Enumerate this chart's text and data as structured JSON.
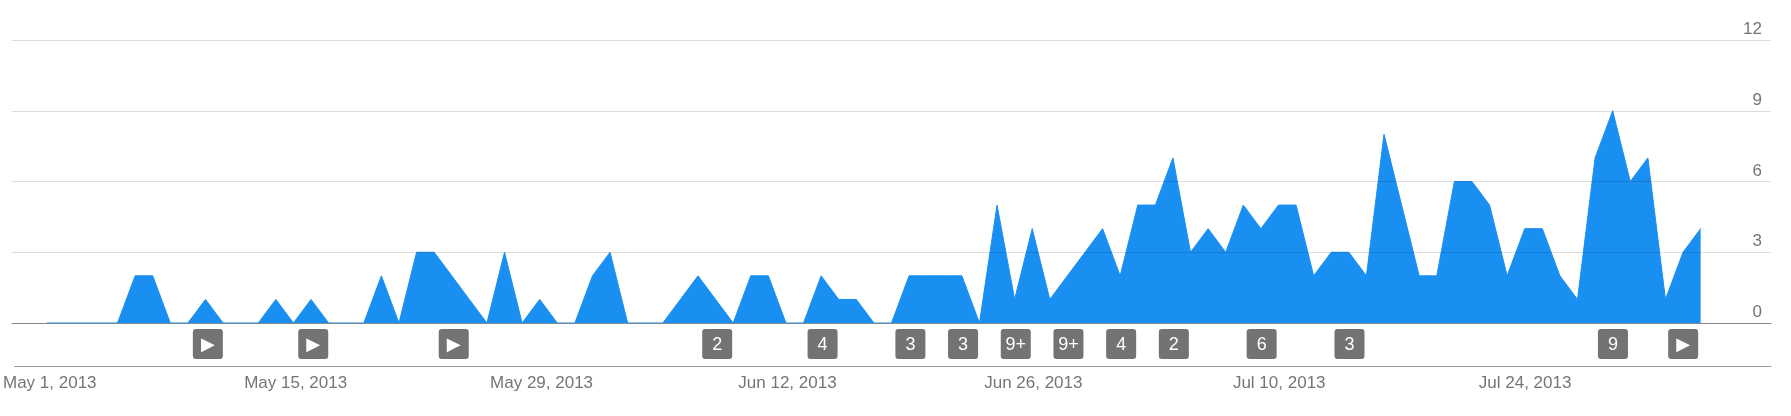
{
  "chart_data": {
    "type": "area",
    "color": "#1a8ff2",
    "x": [
      "2013-05-01",
      "2013-05-02",
      "2013-05-03",
      "2013-05-04",
      "2013-05-05",
      "2013-05-06",
      "2013-05-07",
      "2013-05-08",
      "2013-05-09",
      "2013-05-10",
      "2013-05-11",
      "2013-05-12",
      "2013-05-13",
      "2013-05-14",
      "2013-05-15",
      "2013-05-16",
      "2013-05-17",
      "2013-05-18",
      "2013-05-19",
      "2013-05-20",
      "2013-05-21",
      "2013-05-22",
      "2013-05-23",
      "2013-05-24",
      "2013-05-25",
      "2013-05-26",
      "2013-05-27",
      "2013-05-28",
      "2013-05-29",
      "2013-05-30",
      "2013-05-31",
      "2013-06-01",
      "2013-06-02",
      "2013-06-03",
      "2013-06-04",
      "2013-06-05",
      "2013-06-06",
      "2013-06-07",
      "2013-06-08",
      "2013-06-09",
      "2013-06-10",
      "2013-06-11",
      "2013-06-12",
      "2013-06-13",
      "2013-06-14",
      "2013-06-15",
      "2013-06-16",
      "2013-06-17",
      "2013-06-18",
      "2013-06-19",
      "2013-06-20",
      "2013-06-21",
      "2013-06-22",
      "2013-06-23",
      "2013-06-24",
      "2013-06-25",
      "2013-06-26",
      "2013-06-27",
      "2013-06-28",
      "2013-06-29",
      "2013-06-30",
      "2013-07-01",
      "2013-07-02",
      "2013-07-03",
      "2013-07-04",
      "2013-07-05",
      "2013-07-06",
      "2013-07-07",
      "2013-07-08",
      "2013-07-09",
      "2013-07-10",
      "2013-07-11",
      "2013-07-12",
      "2013-07-13",
      "2013-07-14",
      "2013-07-15",
      "2013-07-16",
      "2013-07-17",
      "2013-07-18",
      "2013-07-19",
      "2013-07-20",
      "2013-07-21",
      "2013-07-22",
      "2013-07-23",
      "2013-07-24",
      "2013-07-25",
      "2013-07-26",
      "2013-07-27",
      "2013-07-28",
      "2013-07-29",
      "2013-07-30",
      "2013-07-31",
      "2013-08-01",
      "2013-08-02",
      "2013-08-03"
    ],
    "values": [
      0,
      0,
      0,
      0,
      0,
      2,
      2,
      0,
      0,
      1,
      0,
      0,
      0,
      1,
      0,
      1,
      0,
      0,
      0,
      2,
      0,
      3,
      3,
      2,
      1,
      0,
      3,
      0,
      1,
      0,
      0,
      2,
      3,
      0,
      0,
      0,
      1,
      2,
      1,
      0,
      2,
      2,
      0,
      0,
      2,
      1,
      1,
      0,
      0,
      2,
      2,
      2,
      2,
      0,
      5,
      1,
      4,
      1,
      2,
      3,
      4,
      2,
      5,
      5,
      7,
      3,
      4,
      3,
      5,
      4,
      5,
      5,
      2,
      3,
      3,
      2,
      8,
      5,
      2,
      2,
      6,
      6,
      5,
      2,
      4,
      4,
      2,
      1,
      7,
      9,
      6,
      7,
      1,
      3,
      4
    ],
    "xlim": [
      "2013-04-29",
      "2013-08-07"
    ],
    "xticks": [
      {
        "value": "2013-05-01",
        "label": "May 1, 2013"
      },
      {
        "value": "2013-05-15",
        "label": "May 15, 2013"
      },
      {
        "value": "2013-05-29",
        "label": "May 29, 2013"
      },
      {
        "value": "2013-06-12",
        "label": "Jun 12, 2013"
      },
      {
        "value": "2013-06-26",
        "label": "Jun 26, 2013"
      },
      {
        "value": "2013-07-10",
        "label": "Jul 10, 2013"
      },
      {
        "value": "2013-07-24",
        "label": "Jul 24, 2013"
      }
    ],
    "x2lim": [
      "2013-04-29",
      "2013-08-07"
    ],
    "x2ticks": [
      {
        "value": "2013-05-10",
        "label": "▶"
      },
      {
        "value": "2013-05-16",
        "label": "▶"
      },
      {
        "value": "2013-05-24",
        "label": "▶"
      },
      {
        "value": "2013-06-08",
        "label": "2"
      },
      {
        "value": "2013-06-14",
        "label": "4"
      },
      {
        "value": "2013-06-19",
        "label": "3"
      },
      {
        "value": "2013-06-22",
        "label": "3"
      },
      {
        "value": "2013-06-25",
        "label": "9+"
      },
      {
        "value": "2013-06-28",
        "label": "9+"
      },
      {
        "value": "2013-07-01",
        "label": "4"
      },
      {
        "value": "2013-07-04",
        "label": "2"
      },
      {
        "value": "2013-07-09",
        "label": "6"
      },
      {
        "value": "2013-07-14",
        "label": "3"
      },
      {
        "value": "2013-07-29",
        "label": "9"
      },
      {
        "value": "2013-08-02",
        "label": "▶"
      }
    ],
    "ylim": [
      0,
      12
    ],
    "yticks": [
      0,
      3,
      6,
      9,
      12
    ],
    "grid": "y"
  }
}
